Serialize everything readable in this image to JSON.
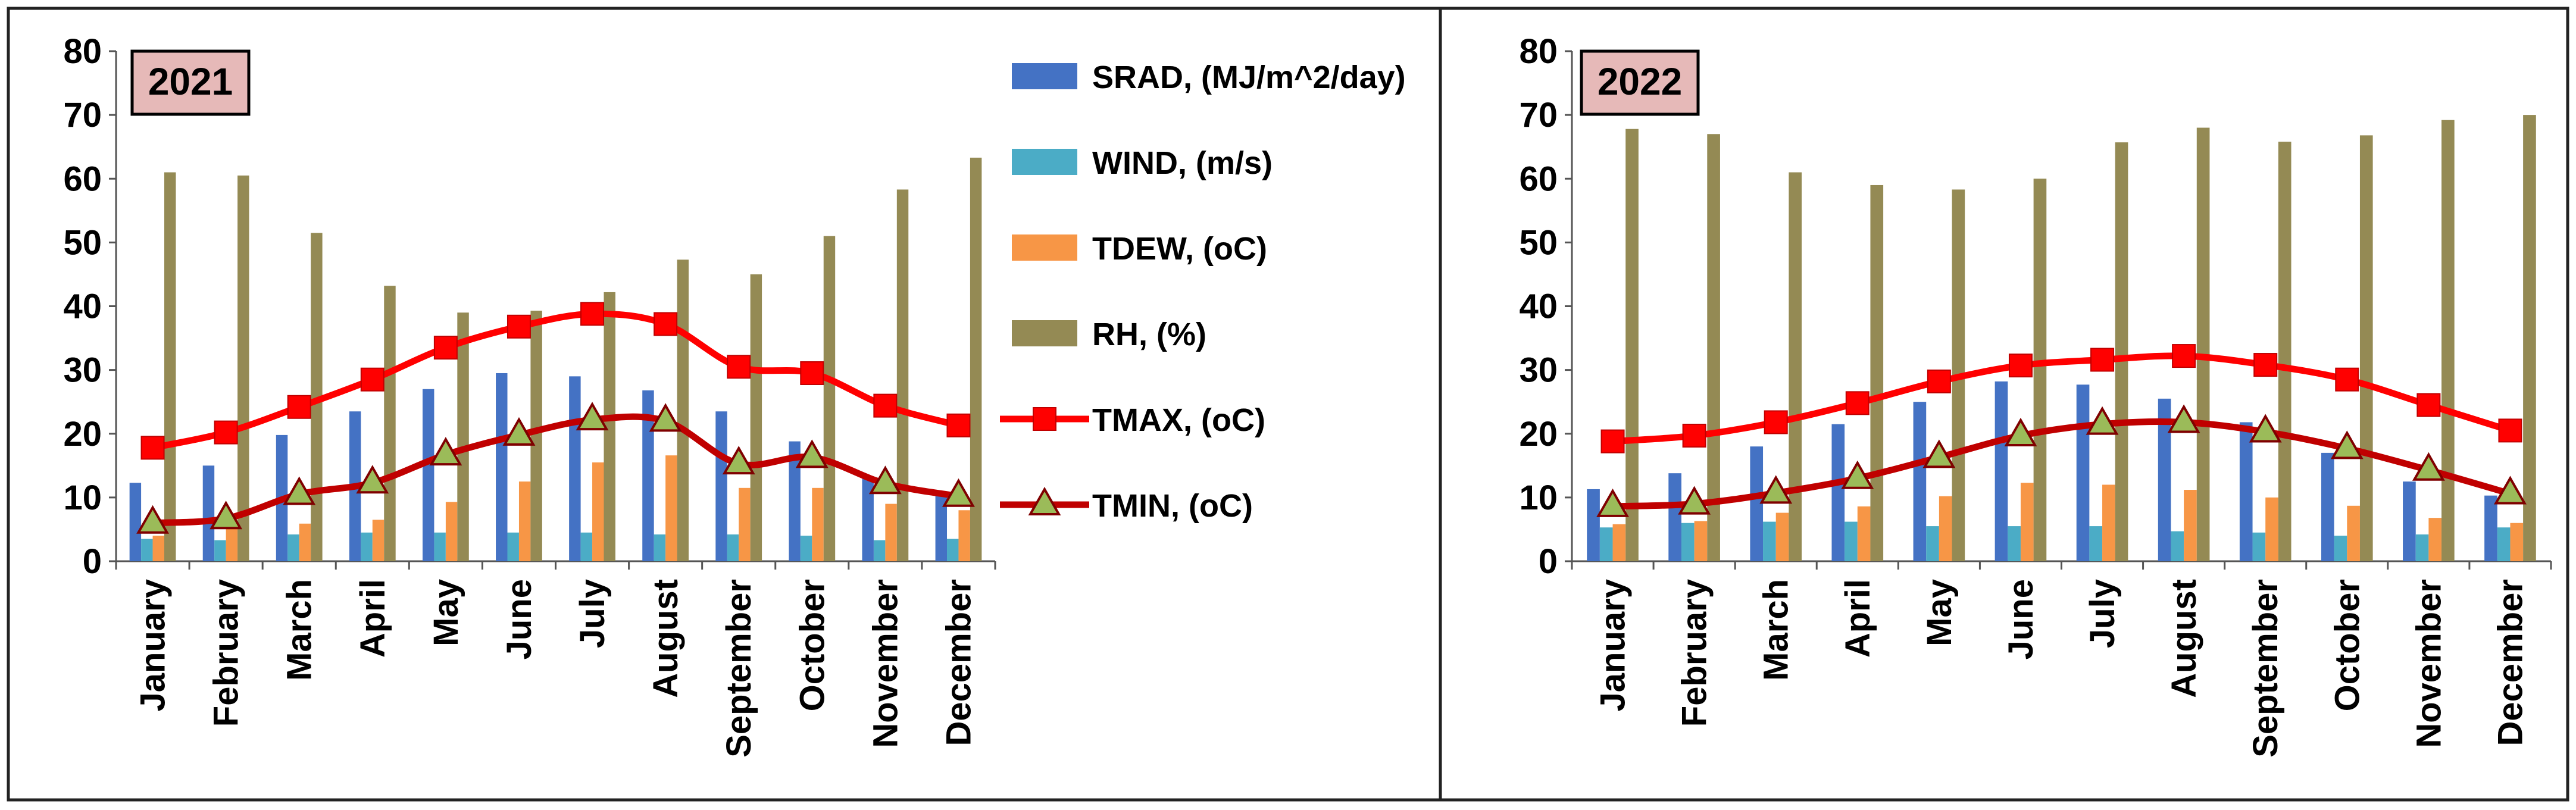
{
  "months": [
    "January",
    "February",
    "March",
    "April",
    "May",
    "June",
    "July",
    "August",
    "September",
    "October",
    "November",
    "December"
  ],
  "legend": [
    {
      "key": "srad",
      "label": "SRAD, (MJ/m^2/day)",
      "kind": "bar",
      "color": "#4472C4"
    },
    {
      "key": "wind",
      "label": "WIND, (m/s)",
      "kind": "bar",
      "color": "#4BACC6"
    },
    {
      "key": "tdew",
      "label": "TDEW, (oC)",
      "kind": "bar",
      "color": "#F79646"
    },
    {
      "key": "rh",
      "label": "RH, (%)",
      "kind": "bar",
      "color": "#948A54"
    },
    {
      "key": "tmax",
      "label": "TMAX, (oC)",
      "kind": "line",
      "color": "#FF0000",
      "marker": "square"
    },
    {
      "key": "tmin",
      "label": "TMIN, (oC)",
      "kind": "line",
      "color": "#C00000",
      "marker": "triangle",
      "marker_fill": "#9BBB59"
    }
  ],
  "chart_data": [
    {
      "type": "bar",
      "title": "2021",
      "categories": [
        "January",
        "February",
        "March",
        "April",
        "May",
        "June",
        "July",
        "August",
        "September",
        "October",
        "November",
        "December"
      ],
      "ylim": [
        0,
        80
      ],
      "yticks": [
        0,
        10,
        20,
        30,
        40,
        50,
        60,
        70,
        80
      ],
      "series": [
        {
          "name": "SRAD, (MJ/m^2/day)",
          "type": "bar",
          "values": [
            12.3,
            15,
            19.8,
            23.5,
            27,
            29.5,
            29,
            26.8,
            23.5,
            18.8,
            13.2,
            10.8
          ]
        },
        {
          "name": "WIND, (m/s)",
          "type": "bar",
          "values": [
            3.5,
            3.3,
            4.2,
            4.5,
            4.5,
            4.5,
            4.5,
            4.2,
            4.2,
            4,
            3.3,
            3.5
          ]
        },
        {
          "name": "TDEW, (oC)",
          "type": "bar",
          "values": [
            4,
            5.2,
            5.9,
            6.5,
            9.3,
            12.5,
            15.5,
            16.6,
            11.5,
            11.5,
            9,
            8
          ]
        },
        {
          "name": "RH, (%)",
          "type": "bar",
          "values": [
            61,
            60.5,
            51.5,
            43.2,
            39,
            39.3,
            42.2,
            47.3,
            45,
            51,
            58.3,
            63.3
          ]
        },
        {
          "name": "TMAX, (oC)",
          "type": "line",
          "values": [
            17.8,
            20.2,
            24.2,
            28.5,
            33.5,
            36.8,
            38.8,
            37.2,
            30.5,
            29.5,
            24.4,
            21.3
          ]
        },
        {
          "name": "TMIN, (oC)",
          "type": "line",
          "values": [
            6,
            6.7,
            10.5,
            12.3,
            16.7,
            19.8,
            22.2,
            22,
            15.3,
            16.3,
            12.2,
            10.2
          ]
        }
      ]
    },
    {
      "type": "bar",
      "title": "2022",
      "categories": [
        "January",
        "February",
        "March",
        "April",
        "May",
        "June",
        "July",
        "August",
        "September",
        "October",
        "November",
        "December"
      ],
      "ylim": [
        0,
        80
      ],
      "yticks": [
        0,
        10,
        20,
        30,
        40,
        50,
        60,
        70,
        80
      ],
      "series": [
        {
          "name": "SRAD, (MJ/m^2/day)",
          "type": "bar",
          "values": [
            11.3,
            13.8,
            18,
            21.5,
            25,
            28.2,
            27.7,
            25.5,
            21.8,
            17,
            12.5,
            10.3
          ]
        },
        {
          "name": "WIND, (m/s)",
          "type": "bar",
          "values": [
            5.3,
            6,
            6.2,
            6.2,
            5.5,
            5.5,
            5.5,
            4.7,
            4.5,
            4,
            4.2,
            5.3
          ]
        },
        {
          "name": "TDEW, (oC)",
          "type": "bar",
          "values": [
            5.8,
            6.3,
            7.6,
            8.6,
            10.2,
            12.3,
            12,
            11.2,
            10,
            8.7,
            6.8,
            6
          ]
        },
        {
          "name": "RH, (%)",
          "type": "bar",
          "values": [
            67.8,
            67,
            61,
            59,
            58.3,
            60,
            65.7,
            68,
            65.8,
            66.8,
            69.2,
            70
          ]
        },
        {
          "name": "TMAX, (oC)",
          "type": "line",
          "values": [
            18.8,
            19.7,
            21.8,
            24.8,
            28.2,
            30.7,
            31.6,
            32.2,
            30.8,
            28.5,
            24.5,
            20.5
          ]
        },
        {
          "name": "TMIN, (oC)",
          "type": "line",
          "values": [
            8.6,
            9,
            10.7,
            13,
            16.3,
            19.7,
            21.5,
            21.8,
            20.3,
            17.7,
            14.3,
            10.6
          ]
        }
      ]
    }
  ]
}
